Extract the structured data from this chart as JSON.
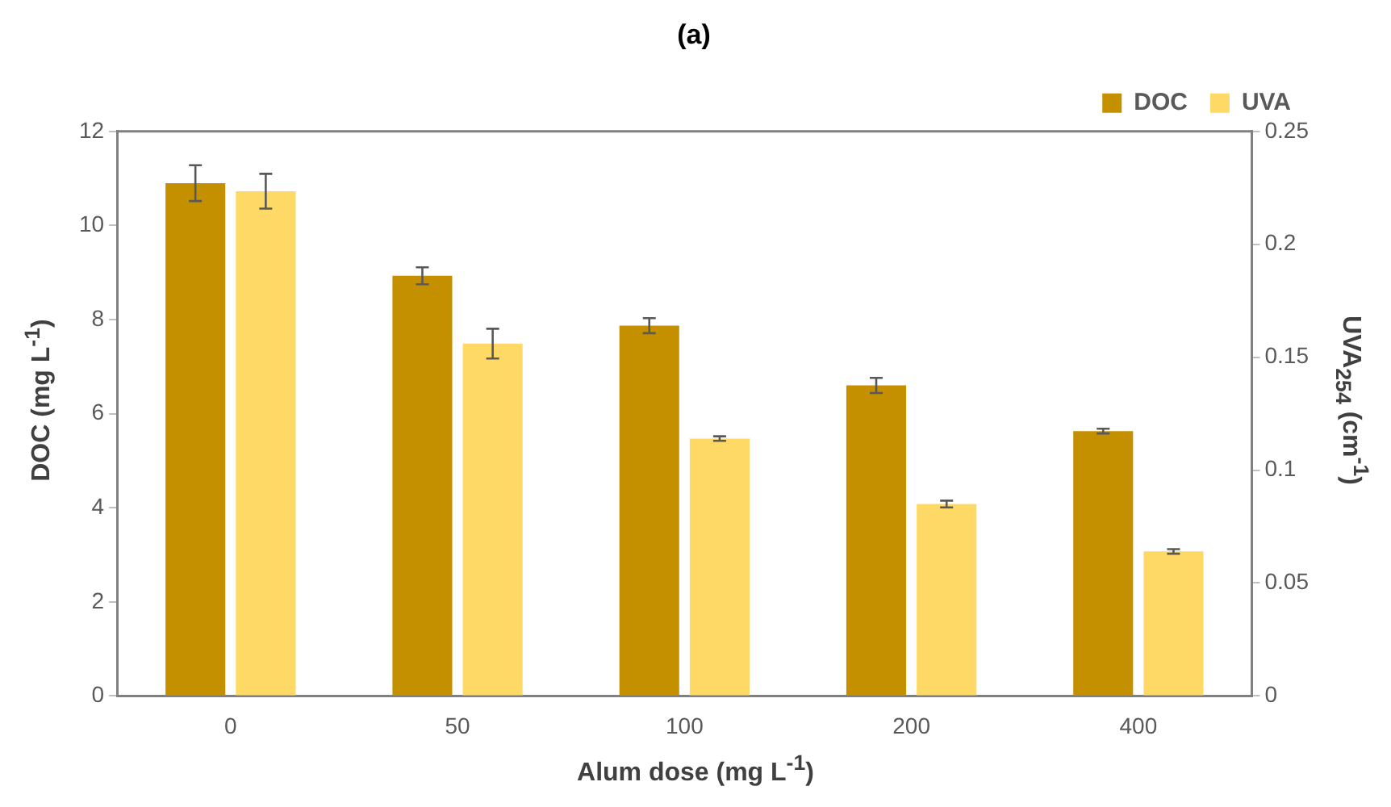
{
  "chart_data": {
    "type": "bar",
    "title": "(a)",
    "xlabel": "Alum dose (mg L$^{-1}$)",
    "ylabel": "DOC (mg L$^{-1}$)",
    "y2label": "UVA$_{254}$ (cm$^{-1}$)",
    "categories": [
      "0",
      "50",
      "100",
      "200",
      "400"
    ],
    "series": [
      {
        "name": "DOC",
        "color": "#c49000",
        "values": [
          10.9,
          8.93,
          7.87,
          6.6,
          5.63
        ],
        "errors": [
          0.38,
          0.18,
          0.16,
          0.16,
          0.05
        ]
      },
      {
        "name": "UVA",
        "color": "#ffd966",
        "axis": "y2",
        "values": [
          0.2235,
          0.156,
          0.114,
          0.085,
          0.064
        ],
        "errors": [
          0.0077,
          0.0066,
          0.001,
          0.0015,
          0.001
        ]
      }
    ],
    "ylim": [
      0,
      12
    ],
    "yticks": [
      0,
      2,
      4,
      6,
      8,
      10,
      12
    ],
    "y2lim": [
      0,
      0.25
    ],
    "y2ticks": [
      0,
      0.05,
      0.1,
      0.15,
      0.2,
      0.25
    ],
    "grid": false,
    "legend": "top right"
  }
}
